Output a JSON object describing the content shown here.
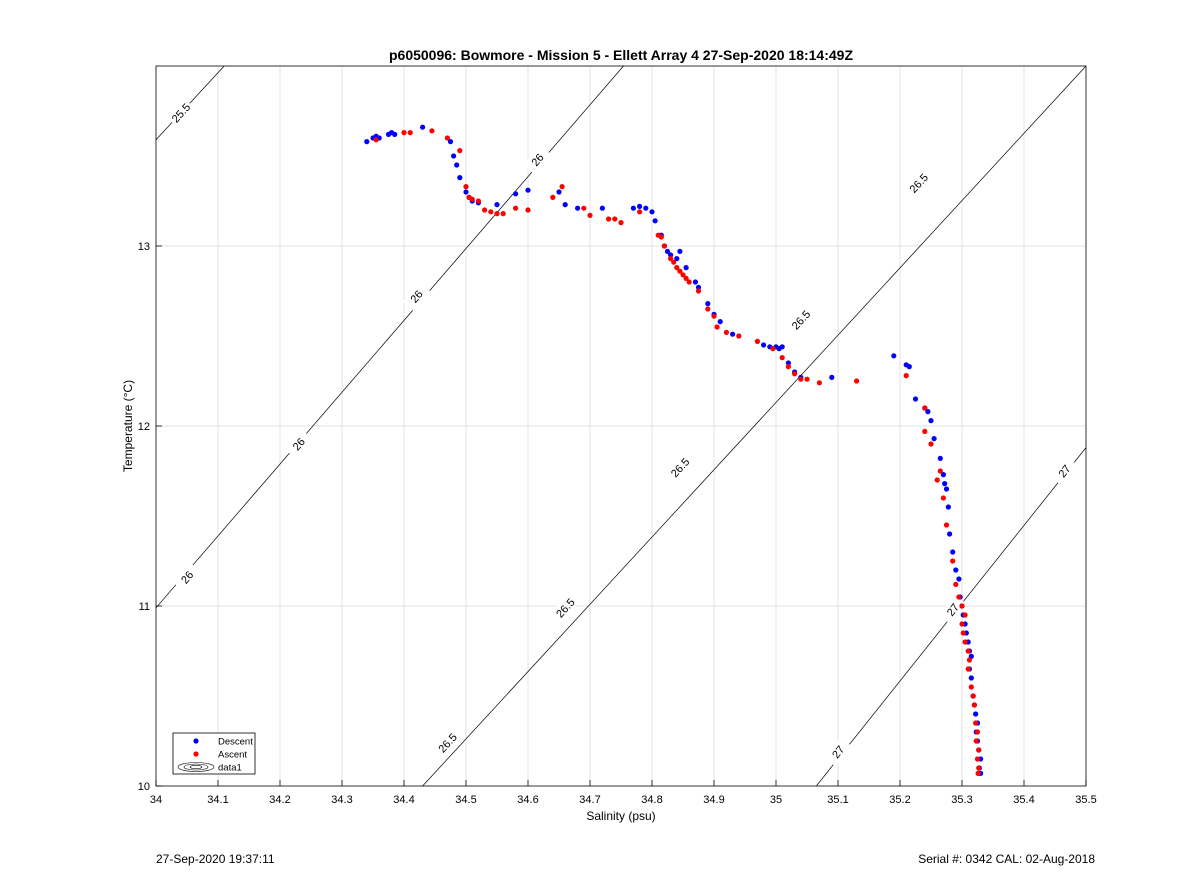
{
  "chart_data": {
    "type": "scatter",
    "title": "p6050096: Bowmore - Mission 5 - Ellett Array 4 27-Sep-2020 18:14:49Z",
    "xlabel": "Salinity (psu)",
    "ylabel": "Temperature (°C)",
    "xlim": [
      34,
      35.5
    ],
    "ylim": [
      10,
      14
    ],
    "xticks": [
      "34",
      "34.1",
      "34.2",
      "34.3",
      "34.4",
      "34.5",
      "34.6",
      "34.7",
      "34.8",
      "34.9",
      "35",
      "35.1",
      "35.2",
      "35.3",
      "35.4",
      "35.5"
    ],
    "yticks": [
      "10",
      "11",
      "12",
      "13"
    ],
    "grid": true,
    "legend": {
      "position": "bottom-left",
      "entries": [
        "Descent",
        "Ascent",
        "data1"
      ]
    },
    "contours": [
      {
        "level": "25.5",
        "points": [
          [
            34.0,
            13.59
          ],
          [
            34.11,
            14.0
          ]
        ],
        "labels": [
          [
            34.04,
            13.74
          ]
        ]
      },
      {
        "level": "26",
        "points": [
          [
            34.0,
            10.99
          ],
          [
            34.754,
            14.0
          ]
        ],
        "labels": [
          [
            34.05,
            11.16
          ],
          [
            34.23,
            11.9
          ],
          [
            34.42,
            12.72
          ],
          [
            34.615,
            13.48
          ]
        ]
      },
      {
        "level": "26.5",
        "points": [
          [
            34.43,
            10.0
          ],
          [
            35.5,
            14.0
          ]
        ],
        "labels": [
          [
            34.47,
            10.24
          ],
          [
            34.66,
            10.99
          ],
          [
            34.845,
            11.77
          ],
          [
            35.04,
            12.59
          ],
          [
            35.23,
            13.35
          ]
        ]
      },
      {
        "level": "27",
        "points": [
          [
            35.065,
            10.0
          ],
          [
            35.5,
            11.88
          ]
        ],
        "labels": [
          [
            35.1,
            10.19
          ],
          [
            35.285,
            10.98
          ],
          [
            35.465,
            11.75
          ]
        ]
      }
    ],
    "series": [
      {
        "name": "Descent",
        "color": "#0000ff",
        "points": [
          [
            34.34,
            13.58
          ],
          [
            34.35,
            13.6
          ],
          [
            34.355,
            13.61
          ],
          [
            34.36,
            13.6
          ],
          [
            34.375,
            13.62
          ],
          [
            34.38,
            13.63
          ],
          [
            34.385,
            13.62
          ],
          [
            34.43,
            13.66
          ],
          [
            34.475,
            13.58
          ],
          [
            34.48,
            13.5
          ],
          [
            34.485,
            13.45
          ],
          [
            34.49,
            13.38
          ],
          [
            34.5,
            13.3
          ],
          [
            34.505,
            13.27
          ],
          [
            34.51,
            13.25
          ],
          [
            34.52,
            13.24
          ],
          [
            34.55,
            13.23
          ],
          [
            34.58,
            13.29
          ],
          [
            34.6,
            13.31
          ],
          [
            34.65,
            13.3
          ],
          [
            34.66,
            13.23
          ],
          [
            34.68,
            13.21
          ],
          [
            34.72,
            13.21
          ],
          [
            34.77,
            13.21
          ],
          [
            34.78,
            13.22
          ],
          [
            34.79,
            13.21
          ],
          [
            34.8,
            13.19
          ],
          [
            34.805,
            13.14
          ],
          [
            34.815,
            13.06
          ],
          [
            34.82,
            13.0
          ],
          [
            34.825,
            12.97
          ],
          [
            34.83,
            12.95
          ],
          [
            34.84,
            12.93
          ],
          [
            34.845,
            12.97
          ],
          [
            34.855,
            12.88
          ],
          [
            34.87,
            12.8
          ],
          [
            34.875,
            12.77
          ],
          [
            34.89,
            12.68
          ],
          [
            34.9,
            12.62
          ],
          [
            34.91,
            12.58
          ],
          [
            34.93,
            12.51
          ],
          [
            34.98,
            12.45
          ],
          [
            34.99,
            12.44
          ],
          [
            35.0,
            12.44
          ],
          [
            35.005,
            12.43
          ],
          [
            35.01,
            12.44
          ],
          [
            35.02,
            12.35
          ],
          [
            35.03,
            12.3
          ],
          [
            35.04,
            12.27
          ],
          [
            35.09,
            12.27
          ],
          [
            35.19,
            12.39
          ],
          [
            35.21,
            12.34
          ],
          [
            35.215,
            12.33
          ],
          [
            35.225,
            12.15
          ],
          [
            35.24,
            12.1
          ],
          [
            35.245,
            12.08
          ],
          [
            35.25,
            12.03
          ],
          [
            35.255,
            11.93
          ],
          [
            35.265,
            11.82
          ],
          [
            35.27,
            11.73
          ],
          [
            35.272,
            11.68
          ],
          [
            35.275,
            11.65
          ],
          [
            35.278,
            11.55
          ],
          [
            35.28,
            11.4
          ],
          [
            35.285,
            11.3
          ],
          [
            35.29,
            11.2
          ],
          [
            35.295,
            11.15
          ],
          [
            35.297,
            11.05
          ],
          [
            35.3,
            11.0
          ],
          [
            35.302,
            10.95
          ],
          [
            35.305,
            10.9
          ],
          [
            35.307,
            10.85
          ],
          [
            35.31,
            10.8
          ],
          [
            35.312,
            10.75
          ],
          [
            35.315,
            10.72
          ],
          [
            35.312,
            10.65
          ],
          [
            35.315,
            10.6
          ],
          [
            35.318,
            10.5
          ],
          [
            35.32,
            10.45
          ],
          [
            35.322,
            10.4
          ],
          [
            35.325,
            10.35
          ],
          [
            35.323,
            10.3
          ],
          [
            35.325,
            10.25
          ],
          [
            35.327,
            10.2
          ],
          [
            35.33,
            10.15
          ],
          [
            35.328,
            10.1
          ],
          [
            35.33,
            10.07
          ]
        ]
      },
      {
        "name": "Ascent",
        "color": "#ff0000",
        "points": [
          [
            34.355,
            13.59
          ],
          [
            34.4,
            13.63
          ],
          [
            34.41,
            13.63
          ],
          [
            34.445,
            13.64
          ],
          [
            34.47,
            13.6
          ],
          [
            34.49,
            13.53
          ],
          [
            34.5,
            13.33
          ],
          [
            34.505,
            13.27
          ],
          [
            34.51,
            13.26
          ],
          [
            34.52,
            13.25
          ],
          [
            34.53,
            13.2
          ],
          [
            34.54,
            13.19
          ],
          [
            34.55,
            13.18
          ],
          [
            34.56,
            13.18
          ],
          [
            34.58,
            13.21
          ],
          [
            34.6,
            13.2
          ],
          [
            34.64,
            13.27
          ],
          [
            34.655,
            13.33
          ],
          [
            34.69,
            13.21
          ],
          [
            34.7,
            13.17
          ],
          [
            34.73,
            13.15
          ],
          [
            34.74,
            13.15
          ],
          [
            34.75,
            13.13
          ],
          [
            34.78,
            13.19
          ],
          [
            34.81,
            13.06
          ],
          [
            34.815,
            13.05
          ],
          [
            34.82,
            13.0
          ],
          [
            34.83,
            12.93
          ],
          [
            34.835,
            12.91
          ],
          [
            34.84,
            12.88
          ],
          [
            34.845,
            12.86
          ],
          [
            34.85,
            12.84
          ],
          [
            34.855,
            12.82
          ],
          [
            34.86,
            12.8
          ],
          [
            34.875,
            12.75
          ],
          [
            34.89,
            12.65
          ],
          [
            34.9,
            12.61
          ],
          [
            34.905,
            12.55
          ],
          [
            34.92,
            12.52
          ],
          [
            34.94,
            12.5
          ],
          [
            34.97,
            12.47
          ],
          [
            34.995,
            12.43
          ],
          [
            35.01,
            12.38
          ],
          [
            35.02,
            12.33
          ],
          [
            35.03,
            12.29
          ],
          [
            35.04,
            12.26
          ],
          [
            35.05,
            12.26
          ],
          [
            35.07,
            12.24
          ],
          [
            35.13,
            12.25
          ],
          [
            35.21,
            12.28
          ],
          [
            35.24,
            12.1
          ],
          [
            35.24,
            11.97
          ],
          [
            35.25,
            11.9
          ],
          [
            35.265,
            11.75
          ],
          [
            35.26,
            11.7
          ],
          [
            35.27,
            11.6
          ],
          [
            35.275,
            11.45
          ],
          [
            35.285,
            11.25
          ],
          [
            35.29,
            11.12
          ],
          [
            35.295,
            11.05
          ],
          [
            35.3,
            11.0
          ],
          [
            35.305,
            10.95
          ],
          [
            35.3,
            10.9
          ],
          [
            35.302,
            10.85
          ],
          [
            35.305,
            10.8
          ],
          [
            35.31,
            10.75
          ],
          [
            35.312,
            10.7
          ],
          [
            35.31,
            10.65
          ],
          [
            35.315,
            10.55
          ],
          [
            35.318,
            10.5
          ],
          [
            35.32,
            10.45
          ],
          [
            35.322,
            10.35
          ],
          [
            35.325,
            10.3
          ],
          [
            35.323,
            10.25
          ],
          [
            35.327,
            10.2
          ],
          [
            35.325,
            10.15
          ],
          [
            35.327,
            10.1
          ],
          [
            35.326,
            10.07
          ]
        ]
      }
    ]
  },
  "footer": {
    "timestamp": "27-Sep-2020 19:37:11",
    "serial_cal": "Serial #: 0342  CAL: 02-Aug-2018"
  }
}
